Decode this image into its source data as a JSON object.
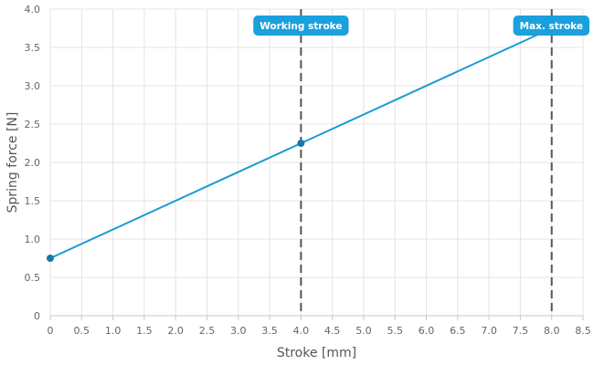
{
  "chart_data": {
    "type": "line",
    "xlabel": "Stroke [mm]",
    "ylabel": "Spring force [N]",
    "xlim": [
      0,
      8.5
    ],
    "ylim": [
      0,
      4.0
    ],
    "x_ticks": [
      0,
      0.5,
      1.0,
      1.5,
      2.0,
      2.5,
      3.0,
      3.5,
      4.0,
      4.5,
      5.0,
      5.5,
      6.0,
      6.5,
      7.0,
      7.5,
      8.0,
      8.5
    ],
    "x_tick_labels": [
      "0",
      "0.5",
      "1.0",
      "1.5",
      "2.0",
      "2.5",
      "3.0",
      "3.5",
      "4.0",
      "4.5",
      "5.0",
      "5.5",
      "6.0",
      "6.5",
      "7.0",
      "7.5",
      "8.0",
      "8.5"
    ],
    "y_ticks": [
      0,
      0.5,
      1.0,
      1.5,
      2.0,
      2.5,
      3.0,
      3.5,
      4.0
    ],
    "y_tick_labels": [
      "0",
      "0.5",
      "1.0",
      "1.5",
      "2.0",
      "2.5",
      "3.0",
      "3.5",
      "4.0"
    ],
    "grid": true,
    "series": [
      {
        "x": [
          0,
          8.0
        ],
        "y": [
          0.75,
          3.75
        ],
        "color": "#1a9bd7"
      }
    ],
    "points": [
      {
        "x": 0,
        "y": 0.75
      },
      {
        "x": 4.0,
        "y": 2.25
      }
    ],
    "annotations": [
      {
        "type": "vline",
        "x": 4.0,
        "label": "Working stroke"
      },
      {
        "type": "vline",
        "x": 8.0,
        "label": "Max. stroke"
      }
    ],
    "colors": {
      "line": "#1a9bd7",
      "point": "#1a78a8",
      "badge": "#1aa0dc",
      "vline": "#555555",
      "grid": "#e4e4e4"
    }
  }
}
